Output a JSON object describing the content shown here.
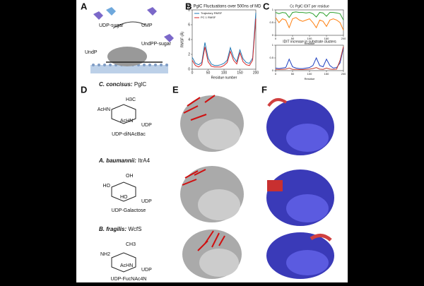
{
  "panel_labels": [
    "A",
    "B",
    "C",
    "D",
    "E",
    "F"
  ],
  "panel_a": {
    "labels": [
      "UDP-sugar",
      "UMP",
      "UndP",
      "UndPP-sugar"
    ]
  },
  "chart_b": {
    "type": "line",
    "title": "Cc PglC Fluctuations over 500ns of MD",
    "x_label": "Residue number",
    "y_label": "RMSF (Å)",
    "x": [
      0,
      10,
      20,
      30,
      40,
      50,
      60,
      70,
      80,
      90,
      100,
      110,
      120,
      130,
      140,
      150,
      160,
      170,
      180,
      190,
      200
    ],
    "series": [
      {
        "name": "Trajectory RMSF",
        "color": "#1f77b4",
        "values": [
          1.6,
          0.8,
          0.6,
          0.9,
          3.6,
          1.5,
          0.7,
          0.5,
          0.5,
          0.6,
          0.8,
          1.2,
          2.9,
          1.6,
          1.0,
          2.6,
          1.4,
          0.9,
          0.8,
          1.5,
          7.6
        ]
      },
      {
        "name": "PC 1 RMSF",
        "color": "#d62728",
        "values": [
          1.2,
          0.5,
          0.3,
          0.6,
          3.0,
          1.0,
          0.4,
          0.3,
          0.3,
          0.3,
          0.5,
          0.9,
          2.4,
          1.2,
          0.7,
          2.2,
          1.0,
          0.6,
          0.5,
          1.2,
          6.8
        ]
      }
    ],
    "xlim": [
      0,
      200
    ],
    "ylim": [
      0,
      8
    ],
    "xticks": [
      0,
      50,
      100,
      150,
      200
    ],
    "yticks": [
      0,
      2,
      4,
      6,
      8
    ]
  },
  "chart_c": [
    {
      "type": "line",
      "title": "Cc PglC IDIT per residue",
      "x_label": "Residue",
      "x": [
        0,
        10,
        20,
        30,
        40,
        50,
        60,
        70,
        80,
        90,
        100,
        110,
        120,
        130,
        140,
        150,
        160,
        170,
        180,
        190,
        200
      ],
      "series": [
        {
          "color": "#2ca02c",
          "values": [
            0.9,
            0.85,
            0.9,
            0.88,
            0.7,
            0.9,
            0.92,
            0.9,
            0.9,
            0.88,
            0.9,
            0.85,
            0.72,
            0.9,
            0.88,
            0.75,
            0.9,
            0.9,
            0.88,
            0.85,
            0.6
          ]
        },
        {
          "color": "#ff7f0e",
          "values": [
            0.7,
            0.5,
            0.65,
            0.6,
            0.3,
            0.65,
            0.7,
            0.6,
            0.55,
            0.6,
            0.65,
            0.5,
            0.3,
            0.6,
            0.55,
            0.35,
            0.6,
            0.65,
            0.6,
            0.5,
            0.2
          ]
        }
      ],
      "xlim": [
        0,
        200
      ],
      "ylim": [
        0,
        1
      ],
      "xticks": [
        0,
        50,
        100,
        150,
        200
      ],
      "yticks": [
        0,
        0.5,
        1
      ]
    },
    {
      "type": "line",
      "title": "IDIT increase in substrate clusters",
      "x_label": "Residue",
      "x": [
        0,
        10,
        20,
        30,
        40,
        50,
        60,
        70,
        80,
        90,
        100,
        110,
        120,
        130,
        140,
        150,
        160,
        170,
        180,
        190,
        200
      ],
      "series": [
        {
          "color": "#1f3fbf",
          "values": [
            0.1,
            0.08,
            0.1,
            0.12,
            0.45,
            0.15,
            0.1,
            0.08,
            0.08,
            0.1,
            0.12,
            0.2,
            0.5,
            0.2,
            0.15,
            0.45,
            0.2,
            0.1,
            0.12,
            0.3,
            0.9
          ]
        },
        {
          "color": "#c0392b",
          "values": [
            0.05,
            0.05,
            0.05,
            0.06,
            0.1,
            0.05,
            0.05,
            0.04,
            0.04,
            0.05,
            0.06,
            0.08,
            0.12,
            0.06,
            0.05,
            0.1,
            0.06,
            0.05,
            0.06,
            0.4,
            0.95
          ]
        }
      ],
      "xlim": [
        0,
        200
      ],
      "ylim": [
        0,
        1
      ],
      "xticks": [
        0,
        50,
        100,
        150,
        200
      ],
      "yticks": [
        0,
        0.5,
        1
      ]
    }
  ],
  "panel_d": [
    {
      "organism": "C. concisus:",
      "enzyme": "PglC",
      "substrate": "UDP-diNAcBac",
      "atoms": [
        "AcHN",
        "H3C",
        "AcHN",
        "UDP"
      ]
    },
    {
      "organism": "A. baumannii:",
      "enzyme": "ItrA4",
      "substrate": "UDP-Galactose",
      "atoms": [
        "HO",
        "OH",
        "HO",
        "UDP"
      ]
    },
    {
      "organism": "B. fragilis:",
      "enzyme": "WcfS",
      "substrate": "UDP-FucNAc4N",
      "atoms": [
        "NH2",
        "CH3",
        "AcHN",
        "UDP"
      ]
    }
  ]
}
